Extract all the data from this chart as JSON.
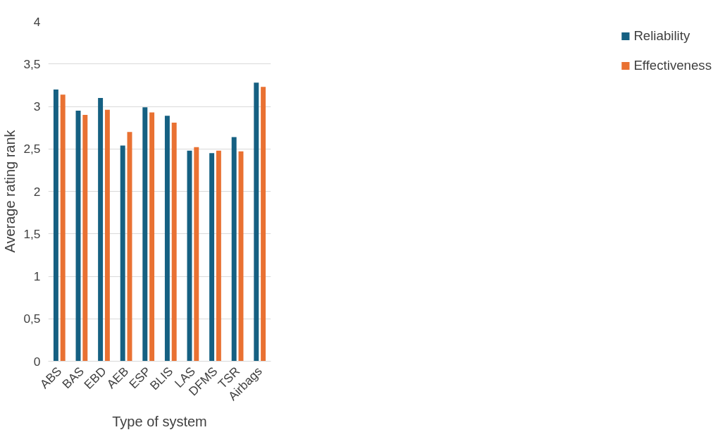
{
  "chart_data": {
    "type": "bar",
    "xlabel": "Type of system",
    "ylabel": "Average rating rank",
    "categories": [
      "ABS",
      "BAS",
      "EBD",
      "AEB",
      "ESP",
      "BLIS",
      "LAS",
      "DFMS",
      "TSR",
      "Airbags"
    ],
    "series": [
      {
        "name": "Reliability",
        "color": "#156082",
        "values": [
          3.2,
          2.95,
          3.1,
          2.54,
          2.99,
          2.89,
          2.48,
          2.45,
          2.64,
          3.28
        ]
      },
      {
        "name": "Effectiveness",
        "color": "#e97132",
        "values": [
          3.14,
          2.9,
          2.96,
          2.7,
          2.93,
          2.81,
          2.52,
          2.48,
          2.47,
          3.23
        ]
      }
    ],
    "ylim": [
      0,
      4
    ],
    "yticks": [
      0,
      {
        "value": 0.5,
        "label": "0,5"
      },
      1,
      {
        "value": 1.5,
        "label": "1,5"
      },
      2,
      {
        "value": 2.5,
        "label": "2,5"
      },
      3,
      {
        "value": 3.5,
        "label": "3,5"
      },
      4
    ],
    "grid": "y",
    "legend": "right"
  }
}
